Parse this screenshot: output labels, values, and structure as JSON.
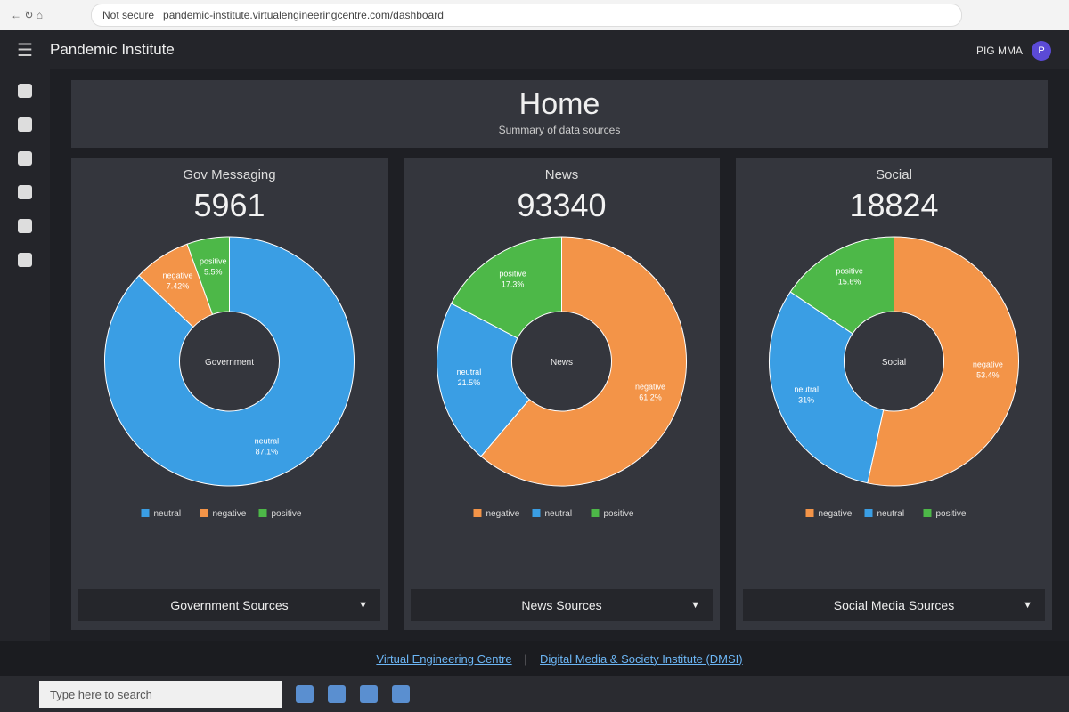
{
  "browser": {
    "security": "Not secure",
    "url": "pandemic-institute.virtualengineeringcentre.com/dashboard"
  },
  "app": {
    "title": "Pandemic Institute",
    "user": "PIG MMA",
    "avatar": "P"
  },
  "header": {
    "title": "Home",
    "subtitle": "Summary of data sources"
  },
  "panels": [
    {
      "title": "Gov Messaging",
      "count": 5961,
      "chart": {
        "type": "donut",
        "center_label": "Government",
        "categories": [
          "neutral",
          "negative",
          "positive"
        ],
        "values": [
          87.1,
          7.42,
          5.5
        ],
        "value_labels": [
          "87.1%",
          "7.42%",
          "5.5%"
        ],
        "colors": [
          "#3a9ee4",
          "#f39448",
          "#4db848"
        ]
      },
      "button": "Government Sources"
    },
    {
      "title": "News",
      "count": 93340,
      "chart": {
        "type": "donut",
        "center_label": "News",
        "categories": [
          "negative",
          "neutral",
          "positive"
        ],
        "values": [
          61.2,
          21.5,
          17.3
        ],
        "value_labels": [
          "61.2%",
          "21.5%",
          "17.3%"
        ],
        "colors": [
          "#f39448",
          "#3a9ee4",
          "#4db848"
        ]
      },
      "button": "News Sources"
    },
    {
      "title": "Social",
      "count": 18824,
      "chart": {
        "type": "donut",
        "center_label": "Social",
        "categories": [
          "negative",
          "neutral",
          "positive"
        ],
        "values": [
          53.4,
          31,
          15.6
        ],
        "value_labels": [
          "53.4%",
          "31%",
          "15.6%"
        ],
        "colors": [
          "#f39448",
          "#3a9ee4",
          "#4db848"
        ]
      },
      "button": "Social Media Sources"
    }
  ],
  "footer": {
    "links": [
      "Virtual Engineering Centre",
      "Digital Media & Society Institute (DMSI)"
    ]
  },
  "taskbar": {
    "search": "Type here to search"
  }
}
